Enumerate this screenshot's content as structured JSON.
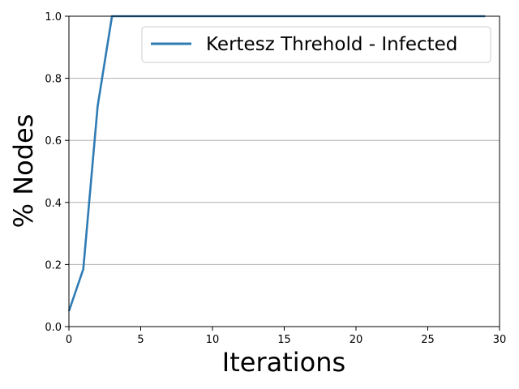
{
  "chart_data": {
    "type": "line",
    "title": "",
    "xlabel": "Iterations",
    "ylabel": "% Nodes",
    "xlim": [
      0,
      30
    ],
    "ylim": [
      0.0,
      1.0
    ],
    "x_ticks": [
      0,
      5,
      10,
      15,
      20,
      25,
      30
    ],
    "x_tick_labels": [
      "0",
      "5",
      "10",
      "15",
      "20",
      "25",
      "30"
    ],
    "y_ticks": [
      0.0,
      0.2,
      0.4,
      0.6,
      0.8,
      1.0
    ],
    "y_tick_labels": [
      "0.0",
      "0.2",
      "0.4",
      "0.6",
      "0.8",
      "1.0"
    ],
    "grid": "horizontal",
    "legend_position": "top-right",
    "series": [
      {
        "name": "Kertesz Threhold - Infected",
        "color": "#2f7bb4",
        "x": [
          0,
          1,
          2,
          3,
          4,
          5,
          6,
          7,
          8,
          9,
          10,
          11,
          12,
          13,
          14,
          15,
          16,
          17,
          18,
          19,
          20,
          21,
          22,
          23,
          24,
          25,
          26,
          27,
          28,
          29
        ],
        "y": [
          0.05,
          0.185,
          0.71,
          1.0,
          1.0,
          1.0,
          1.0,
          1.0,
          1.0,
          1.0,
          1.0,
          1.0,
          1.0,
          1.0,
          1.0,
          1.0,
          1.0,
          1.0,
          1.0,
          1.0,
          1.0,
          1.0,
          1.0,
          1.0,
          1.0,
          1.0,
          1.0,
          1.0,
          1.0,
          1.0
        ]
      }
    ]
  }
}
